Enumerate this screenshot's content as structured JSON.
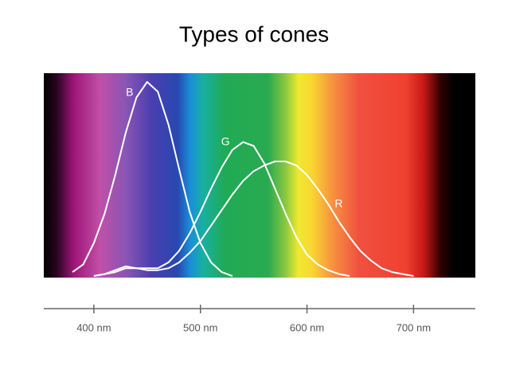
{
  "chart_data": {
    "type": "line",
    "title": "Types of cones",
    "x": [
      380,
      390,
      400,
      410,
      420,
      430,
      440,
      450,
      460,
      470,
      480,
      490,
      500,
      510,
      520,
      530,
      540,
      550,
      560,
      570,
      580,
      590,
      600,
      610,
      620,
      630,
      640,
      650,
      660,
      670,
      680,
      690,
      700
    ],
    "series": [
      {
        "name": "B",
        "color": "#ffffff",
        "values": [
          0.02,
          0.06,
          0.17,
          0.32,
          0.52,
          0.74,
          0.92,
          1.0,
          0.95,
          0.78,
          0.55,
          0.33,
          0.17,
          0.07,
          0.02,
          0,
          null,
          null,
          null,
          null,
          null,
          null,
          null,
          null,
          null,
          null,
          null,
          null,
          null,
          null,
          null,
          null,
          null
        ]
      },
      {
        "name": "G",
        "color": "#ffffff",
        "values": [
          null,
          null,
          0,
          0.01,
          0.03,
          0.05,
          0.04,
          0.04,
          0.04,
          0.07,
          0.13,
          0.22,
          0.33,
          0.45,
          0.56,
          0.65,
          0.69,
          0.67,
          0.58,
          0.45,
          0.32,
          0.2,
          0.11,
          0.06,
          0.03,
          0.01,
          0,
          null,
          null,
          null,
          null,
          null,
          null
        ]
      },
      {
        "name": "R",
        "color": "#ffffff",
        "values": [
          null,
          null,
          0,
          0.01,
          0.02,
          0.04,
          0.04,
          0.03,
          0.03,
          0.04,
          0.07,
          0.12,
          0.18,
          0.26,
          0.34,
          0.42,
          0.49,
          0.54,
          0.57,
          0.59,
          0.59,
          0.57,
          0.52,
          0.45,
          0.37,
          0.28,
          0.2,
          0.13,
          0.08,
          0.04,
          0.02,
          0.01,
          0
        ]
      }
    ],
    "xlim": [
      353,
      758
    ],
    "xticks": [
      {
        "value": 400,
        "label": "400 nm"
      },
      {
        "value": 500,
        "label": "500 nm"
      },
      {
        "value": 600,
        "label": "600 nm"
      },
      {
        "value": 700,
        "label": "700 nm"
      }
    ]
  }
}
